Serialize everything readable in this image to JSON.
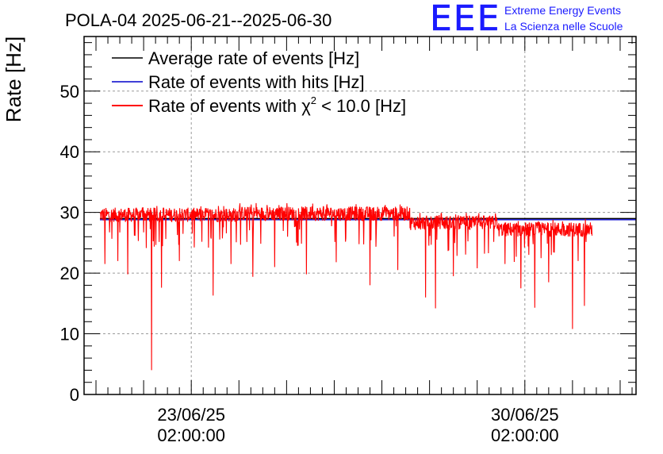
{
  "chart_data": {
    "type": "line",
    "title": "POLA-04 2025-06-21--2025-06-30",
    "ylabel": "Rate [Hz]",
    "xlabel": "",
    "ylim": [
      0,
      59
    ],
    "yticks": [
      0,
      10,
      20,
      30,
      40,
      50
    ],
    "xlim": [
      "2025-06-20T20:00:00",
      "2025-07-02T10:00:00"
    ],
    "xticks": [
      {
        "x": "2025-06-23T02:00:00",
        "line1": "23/06/25",
        "line2": "02:00:00"
      },
      {
        "x": "2025-06-30T02:00:00",
        "line1": "30/06/25",
        "line2": "02:00:00"
      }
    ],
    "grid": true,
    "legend_position": "top-left",
    "data_range": [
      "2025-06-21T04:00:00",
      "2025-07-01T12:00:00"
    ],
    "series": [
      {
        "name": "Average rate of events [Hz]",
        "color": "#000000",
        "style": "flat",
        "values": [
          {
            "x": "2025-06-21T04:00:00",
            "y": 29.0
          },
          {
            "x": "2025-07-02T10:00:00",
            "y": 29.0
          }
        ]
      },
      {
        "name": "Rate of events with hits [Hz]",
        "color": "#0000cc",
        "style": "flat",
        "values": [
          {
            "x": "2025-06-21T04:00:00",
            "y": 28.8
          },
          {
            "x": "2025-07-02T10:00:00",
            "y": 28.8
          }
        ]
      },
      {
        "name": "Rate of events with χ² < 10.0 [Hz]",
        "legend_base": "Rate of events with ",
        "legend_chi": "χ",
        "legend_sup": "2",
        "legend_tail": " < 10.0 [Hz]",
        "color": "#ff0000",
        "style": "noisy",
        "segments": [
          {
            "from": "2025-06-21T04:00:00",
            "to": "2025-06-24T00:00:00",
            "y": 29.6
          },
          {
            "from": "2025-06-24T00:00:00",
            "to": "2025-06-27T16:00:00",
            "y": 29.8
          },
          {
            "from": "2025-06-27T16:00:00",
            "to": "2025-06-29T12:00:00",
            "y": 28.3
          },
          {
            "from": "2025-06-29T12:00:00",
            "to": "2025-07-01T12:00:00",
            "y": 27.2
          }
        ],
        "dips": [
          {
            "x": "2025-06-21T06:30:00",
            "y": 21.5
          },
          {
            "x": "2025-06-21T13:00:00",
            "y": 22.0
          },
          {
            "x": "2025-06-21T18:00:00",
            "y": 19.8
          },
          {
            "x": "2025-06-22T06:00:00",
            "y": 4.0
          },
          {
            "x": "2025-06-22T11:00:00",
            "y": 17.6
          },
          {
            "x": "2025-06-22T20:00:00",
            "y": 22.0
          },
          {
            "x": "2025-06-23T13:00:00",
            "y": 16.3
          },
          {
            "x": "2025-06-23T22:00:00",
            "y": 21.5
          },
          {
            "x": "2025-06-24T09:00:00",
            "y": 19.4
          },
          {
            "x": "2025-06-24T20:00:00",
            "y": 21.0
          },
          {
            "x": "2025-06-25T12:00:00",
            "y": 19.8
          },
          {
            "x": "2025-06-26T03:00:00",
            "y": 21.8
          },
          {
            "x": "2025-06-26T20:00:00",
            "y": 18.0
          },
          {
            "x": "2025-06-27T10:00:00",
            "y": 20.5
          },
          {
            "x": "2025-06-28T00:00:00",
            "y": 16.0
          },
          {
            "x": "2025-06-28T05:00:00",
            "y": 14.2
          },
          {
            "x": "2025-06-28T14:00:00",
            "y": 19.5
          },
          {
            "x": "2025-06-29T02:00:00",
            "y": 20.8
          },
          {
            "x": "2025-06-29T16:00:00",
            "y": 21.5
          },
          {
            "x": "2025-06-30T00:00:00",
            "y": 17.5
          },
          {
            "x": "2025-06-30T07:00:00",
            "y": 14.3
          },
          {
            "x": "2025-06-30T14:00:00",
            "y": 18.5
          },
          {
            "x": "2025-07-01T02:00:00",
            "y": 10.8
          },
          {
            "x": "2025-07-01T08:00:00",
            "y": 14.6
          }
        ]
      }
    ]
  },
  "logo": {
    "mark": "EEE",
    "line1": "Extreme Energy Events",
    "line2": "La Scienza nelle Scuole",
    "color": "#1a1aff"
  }
}
